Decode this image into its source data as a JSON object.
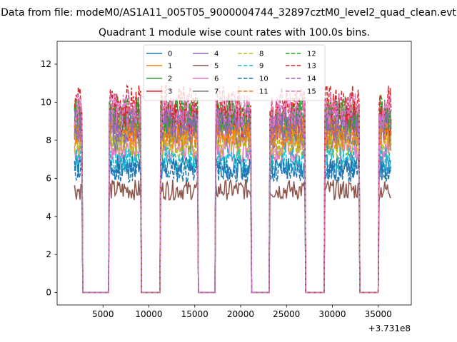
{
  "suptitle": "Data from file: modeM0/AS1A11_005T05_9000004744_32897cztM0_level2_quad_clean.evt",
  "chart_data": {
    "type": "line",
    "title": "Quadrant 1 module wise count rates with 100.0s bins.",
    "xlabel": "",
    "ylabel": "",
    "x_offset_label": "+3.731e8",
    "xlim": [
      0,
      38600
    ],
    "ylim": [
      -0.65,
      13.2
    ],
    "x_ticks": [
      5000,
      10000,
      15000,
      20000,
      25000,
      30000,
      35000
    ],
    "x_tick_labels": [
      "5000",
      "10000",
      "15000",
      "20000",
      "25000",
      "30000",
      "35000"
    ],
    "y_ticks": [
      0,
      2,
      4,
      6,
      8,
      10,
      12
    ],
    "y_tick_labels": [
      "0",
      "2",
      "4",
      "6",
      "8",
      "10",
      "12"
    ],
    "grid": false,
    "legend_placement": "top-center",
    "legend_columns": 4,
    "bin_width": 100,
    "x_range": [
      1900,
      36400
    ],
    "on_intervals": [
      [
        1900,
        2700
      ],
      [
        5700,
        9100
      ],
      [
        11300,
        15300
      ],
      [
        17300,
        21100
      ],
      [
        23200,
        27000
      ],
      [
        29200,
        32900
      ],
      [
        35100,
        36400
      ]
    ],
    "series": [
      {
        "name": "0",
        "color": "#1f77b4",
        "dashed": false,
        "level": 6.6
      },
      {
        "name": "1",
        "color": "#ff7f0e",
        "dashed": false,
        "level": 8.6
      },
      {
        "name": "2",
        "color": "#2ca02c",
        "dashed": false,
        "level": 9.2
      },
      {
        "name": "3",
        "color": "#d62728",
        "dashed": false,
        "level": 9.0
      },
      {
        "name": "4",
        "color": "#9467bd",
        "dashed": false,
        "level": 9.0
      },
      {
        "name": "5",
        "color": "#8c564b",
        "dashed": false,
        "level": 5.4
      },
      {
        "name": "6",
        "color": "#e377c2",
        "dashed": false,
        "level": 7.6
      },
      {
        "name": "7",
        "color": "#7f7f7f",
        "dashed": false,
        "level": 8.2
      },
      {
        "name": "8",
        "color": "#bcbd22",
        "dashed": true,
        "level": 7.8
      },
      {
        "name": "9",
        "color": "#17becf",
        "dashed": true,
        "level": 7.0
      },
      {
        "name": "10",
        "color": "#1f77b4",
        "dashed": true,
        "level": 6.4
      },
      {
        "name": "11",
        "color": "#ff7f0e",
        "dashed": true,
        "level": 8.4
      },
      {
        "name": "12",
        "color": "#2ca02c",
        "dashed": true,
        "level": 9.4
      },
      {
        "name": "13",
        "color": "#d62728",
        "dashed": true,
        "level": 9.9
      },
      {
        "name": "14",
        "color": "#9467bd",
        "dashed": true,
        "level": 8.8
      },
      {
        "name": "15",
        "color": "#e377c2",
        "dashed": true,
        "level": 9.6
      }
    ]
  }
}
